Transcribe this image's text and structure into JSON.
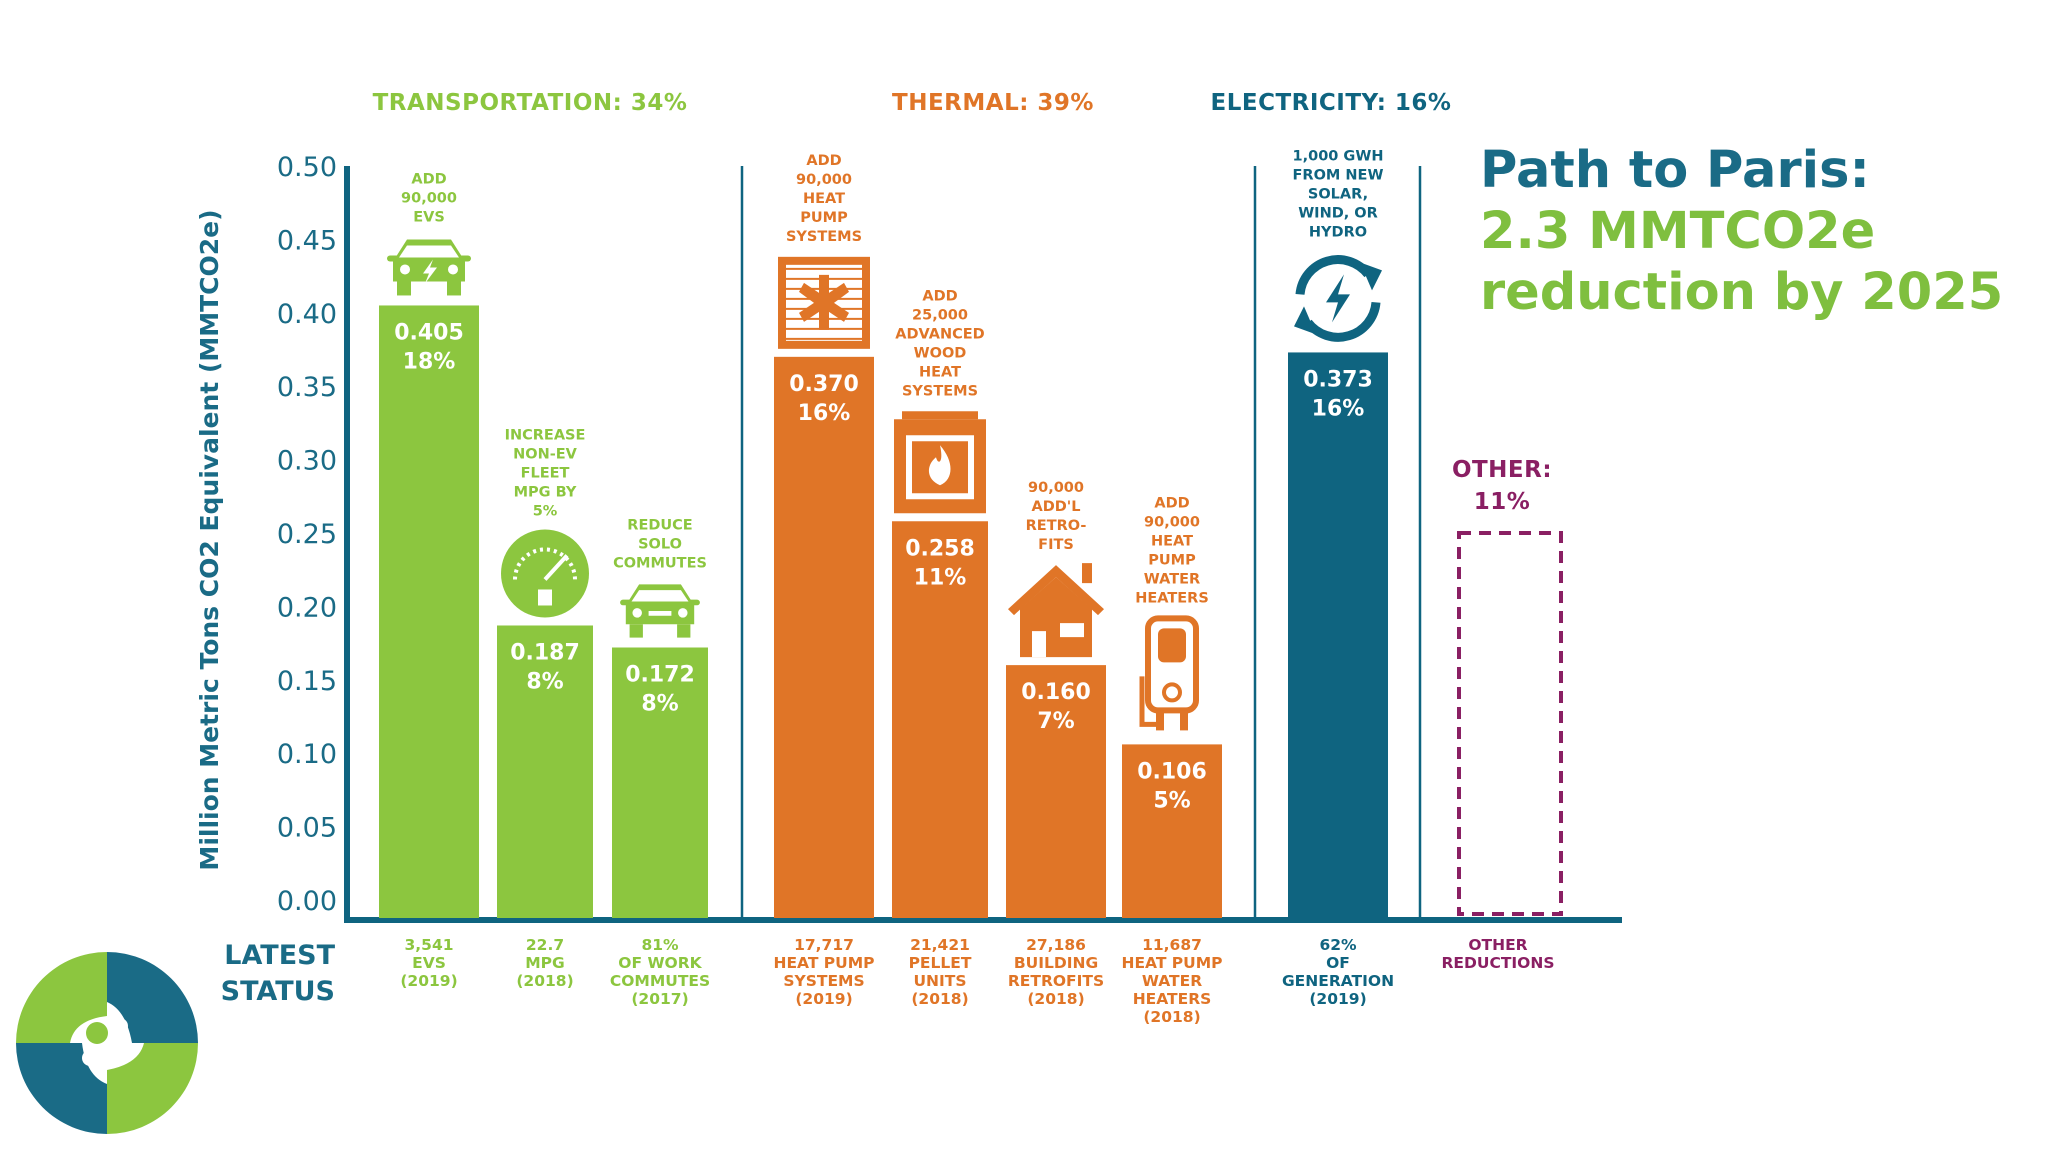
{
  "headline": {
    "line1": "Path to Paris:",
    "line2": "2.3 MMTCO2e",
    "line3": "reduction by 2025",
    "color1": "#1a6b86",
    "color2": "#7fbf3f"
  },
  "colors": {
    "transportation": "#8cc63f",
    "thermal": "#e07527",
    "electricity": "#0f6480",
    "other": "#8a1f63",
    "axis": "#0f6480"
  },
  "categories": [
    {
      "key": "transportation",
      "label": "TRANSPORTATION: 34%"
    },
    {
      "key": "thermal",
      "label": "THERMAL: 39%"
    },
    {
      "key": "electricity",
      "label": "ELECTRICITY: 16%"
    }
  ],
  "other_label": [
    "OTHER:",
    "11%"
  ],
  "latest_status_label": [
    "LATEST",
    "STATUS"
  ],
  "chart_data": {
    "type": "bar",
    "title": "",
    "ylabel": "Million Metric Tons CO2 Equivalent (MMTCO2e)",
    "ylim": [
      0,
      0.5
    ],
    "yticks": [
      "0.00",
      "0.05",
      "0.10",
      "0.15",
      "0.20",
      "0.25",
      "0.30",
      "0.35",
      "0.40",
      "0.45",
      "0.50"
    ],
    "grid": false,
    "bars": [
      {
        "category": "transportation",
        "value": 0.405,
        "value_label": "0.405",
        "share": "18%",
        "icon": "car-bolt-icon",
        "annotation": [
          "ADD",
          "90,000",
          "EVS"
        ],
        "status": [
          "3,541",
          "EVS",
          "(2019)"
        ]
      },
      {
        "category": "transportation",
        "value": 0.187,
        "value_label": "0.187",
        "share": "8%",
        "icon": "gauge-fuel-icon",
        "annotation": [
          "INCREASE",
          "NON-EV",
          "FLEET",
          "MPG BY",
          "5%"
        ],
        "status": [
          "22.7",
          "MPG",
          "(2018)"
        ]
      },
      {
        "category": "transportation",
        "value": 0.172,
        "value_label": "0.172",
        "share": "8%",
        "icon": "car-icon",
        "annotation": [
          "REDUCE",
          "SOLO",
          "COMMUTES"
        ],
        "status": [
          "81%",
          "OF WORK",
          "COMMUTES",
          "(2017)"
        ]
      },
      {
        "category": "thermal",
        "value": 0.37,
        "value_label": "0.370",
        "share": "16%",
        "icon": "heat-pump-icon",
        "annotation": [
          "ADD",
          "90,000",
          "HEAT",
          "PUMP",
          "SYSTEMS"
        ],
        "status": [
          "17,717",
          "HEAT PUMP",
          "SYSTEMS",
          "(2019)"
        ]
      },
      {
        "category": "thermal",
        "value": 0.258,
        "value_label": "0.258",
        "share": "11%",
        "icon": "wood-stove-icon",
        "annotation": [
          "ADD",
          "25,000",
          "ADVANCED",
          "WOOD",
          "HEAT",
          "SYSTEMS"
        ],
        "status": [
          "21,421",
          "PELLET",
          "UNITS",
          "(2018)"
        ]
      },
      {
        "category": "thermal",
        "value": 0.16,
        "value_label": "0.160",
        "share": "7%",
        "icon": "house-icon",
        "annotation": [
          "90,000",
          "ADD'L",
          "RETRO-",
          "FITS"
        ],
        "status": [
          "27,186",
          "BUILDING",
          "RETROFITS",
          "(2018)"
        ]
      },
      {
        "category": "thermal",
        "value": 0.106,
        "value_label": "0.106",
        "share": "5%",
        "icon": "water-heater-icon",
        "annotation": [
          "ADD",
          "90,000",
          "HEAT",
          "PUMP",
          "WATER",
          "HEATERS"
        ],
        "status": [
          "11,687",
          "HEAT PUMP",
          "WATER",
          "HEATERS",
          "(2018)"
        ]
      },
      {
        "category": "electricity",
        "value": 0.373,
        "value_label": "0.373",
        "share": "16%",
        "icon": "renewable-cycle-icon",
        "annotation": [
          "1,000 GWH",
          "FROM NEW",
          "SOLAR,",
          "WIND, OR",
          "HYDRO"
        ],
        "status": [
          "62%",
          "OF",
          "GENERATION",
          "(2019)"
        ]
      },
      {
        "category": "other",
        "value": 0.25,
        "value_label": "0.25",
        "share": "",
        "icon": "",
        "annotation": [],
        "status": [
          "OTHER",
          "REDUCTIONS"
        ],
        "dashed": true
      }
    ]
  }
}
